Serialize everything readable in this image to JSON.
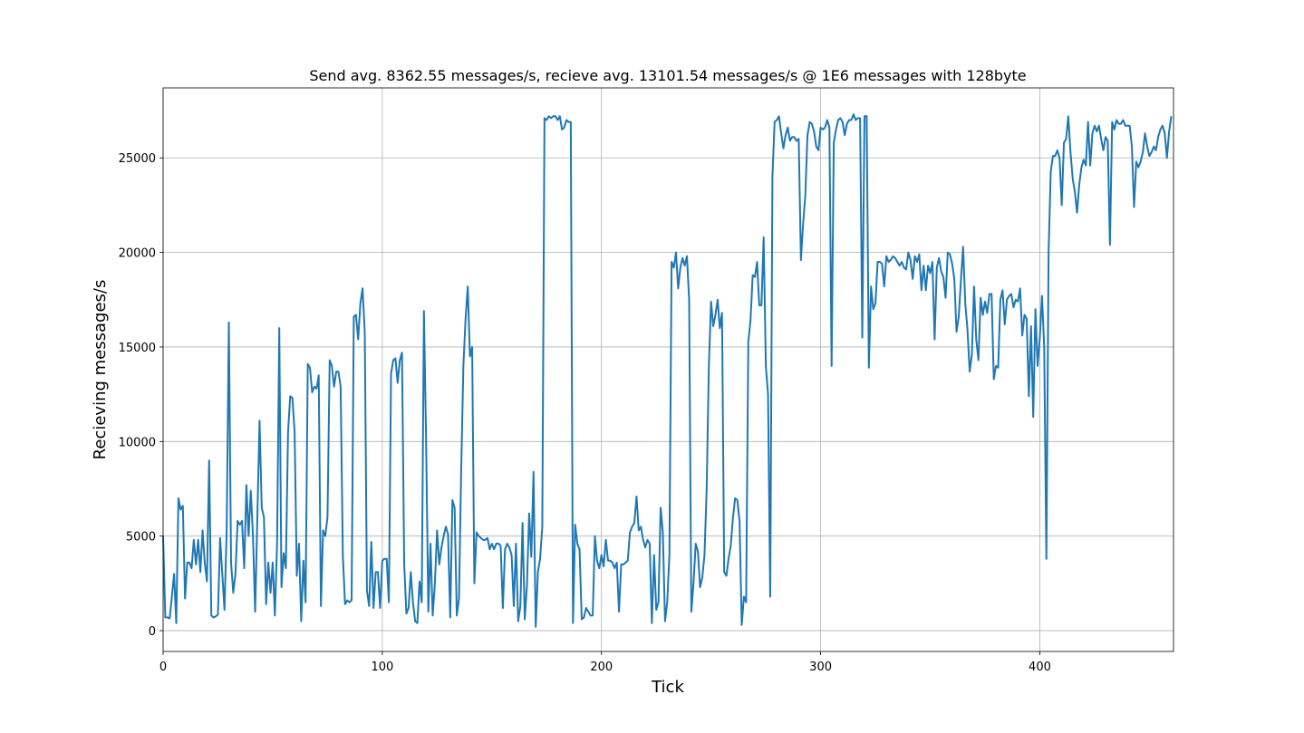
{
  "chart_data": {
    "type": "line",
    "title": "Send avg. 8362.55 messages/s, recieve avg. 13101.54 messages/s @ 1E6 messages with 128byte",
    "x_label": "Tick",
    "y_label": "Recieving messages/s",
    "color": "#1f77b4",
    "grid": true,
    "xlim": [
      0,
      461
    ],
    "ylim": [
      -1100,
      28700
    ],
    "xticks": [
      0,
      100,
      200,
      300,
      400
    ],
    "yticks": [
      0,
      5000,
      10000,
      15000,
      20000,
      25000
    ],
    "x": [
      0,
      1,
      2,
      3,
      4,
      5,
      6,
      7,
      8,
      9,
      10,
      11,
      12,
      13,
      14,
      15,
      16,
      17,
      18,
      19,
      20,
      21,
      22,
      23,
      24,
      25,
      26,
      27,
      28,
      29,
      30,
      31,
      32,
      33,
      34,
      35,
      36,
      37,
      38,
      39,
      40,
      41,
      42,
      43,
      44,
      45,
      46,
      47,
      48,
      49,
      50,
      51,
      52,
      53,
      54,
      55,
      56,
      57,
      58,
      59,
      60,
      61,
      62,
      63,
      64,
      65,
      66,
      67,
      68,
      69,
      70,
      71,
      72,
      73,
      74,
      75,
      76,
      77,
      78,
      79,
      80,
      81,
      82,
      83,
      84,
      85,
      86,
      87,
      88,
      89,
      90,
      91,
      92,
      93,
      94,
      95,
      96,
      97,
      98,
      99,
      100,
      101,
      102,
      103,
      104,
      105,
      106,
      107,
      108,
      109,
      110,
      111,
      112,
      113,
      114,
      115,
      116,
      117,
      118,
      119,
      120,
      121,
      122,
      123,
      124,
      125,
      126,
      127,
      128,
      129,
      130,
      131,
      132,
      133,
      134,
      135,
      136,
      137,
      138,
      139,
      140,
      141,
      142,
      143,
      144,
      145,
      146,
      147,
      148,
      149,
      150,
      151,
      152,
      153,
      154,
      155,
      156,
      157,
      158,
      159,
      160,
      161,
      162,
      163,
      164,
      165,
      166,
      167,
      168,
      169,
      170,
      171,
      172,
      173,
      174,
      175,
      176,
      177,
      178,
      179,
      180,
      181,
      182,
      183,
      184,
      185,
      186,
      187,
      188,
      189,
      190,
      191,
      192,
      193,
      194,
      195,
      196,
      197,
      198,
      199,
      200,
      201,
      202,
      203,
      204,
      205,
      206,
      207,
      208,
      209,
      210,
      211,
      212,
      213,
      214,
      215,
      216,
      217,
      218,
      219,
      220,
      221,
      222,
      223,
      224,
      225,
      226,
      227,
      228,
      229,
      230,
      231,
      232,
      233,
      234,
      235,
      236,
      237,
      238,
      239,
      240,
      241,
      242,
      243,
      244,
      245,
      246,
      247,
      248,
      249,
      250,
      251,
      252,
      253,
      254,
      255,
      256,
      257,
      258,
      259,
      260,
      261,
      262,
      263,
      264,
      265,
      266,
      267,
      268,
      269,
      270,
      271,
      272,
      273,
      274,
      275,
      276,
      277,
      278,
      279,
      280,
      281,
      282,
      283,
      284,
      285,
      286,
      287,
      288,
      289,
      290,
      291,
      292,
      293,
      294,
      295,
      296,
      297,
      298,
      299,
      300,
      301,
      302,
      303,
      304,
      305,
      306,
      307,
      308,
      309,
      310,
      311,
      312,
      313,
      314,
      315,
      316,
      317,
      318,
      319,
      320,
      321,
      322,
      323,
      324,
      325,
      326,
      327,
      328,
      329,
      330,
      331,
      332,
      333,
      334,
      335,
      336,
      337,
      338,
      339,
      340,
      341,
      342,
      343,
      344,
      345,
      346,
      347,
      348,
      349,
      350,
      351,
      352,
      353,
      354,
      355,
      356,
      357,
      358,
      359,
      360,
      361,
      362,
      363,
      364,
      365,
      366,
      367,
      368,
      369,
      370,
      371,
      372,
      373,
      374,
      375,
      376,
      377,
      378,
      379,
      380,
      381,
      382,
      383,
      384,
      385,
      386,
      387,
      388,
      389,
      390,
      391,
      392,
      393,
      394,
      395,
      396,
      397,
      398,
      399,
      400,
      401,
      402,
      403,
      404,
      405,
      406,
      407,
      408,
      409,
      410,
      411,
      412,
      413,
      414,
      415,
      416,
      417,
      418,
      419,
      420,
      421,
      422,
      423,
      424,
      425,
      426,
      427,
      428,
      429,
      430,
      431,
      432,
      433,
      434,
      435,
      436,
      437,
      438,
      439,
      440,
      441,
      442,
      443,
      444,
      445,
      446,
      447,
      448,
      449,
      450,
      451,
      452,
      453,
      454,
      455,
      456,
      457,
      458,
      459,
      460
    ],
    "values": [
      5000,
      700,
      700,
      650,
      1800,
      3000,
      400,
      7000,
      6400,
      6600,
      1700,
      3600,
      3600,
      3300,
      4800,
      3500,
      4800,
      3100,
      5300,
      3600,
      2600,
      9000,
      800,
      700,
      750,
      850,
      4900,
      3000,
      1100,
      5300,
      16300,
      3600,
      2000,
      3000,
      5800,
      5600,
      5800,
      3300,
      7700,
      5000,
      7400,
      5000,
      1000,
      6000,
      11100,
      6500,
      6000,
      1400,
      3600,
      2000,
      3600,
      800,
      4600,
      16000,
      2300,
      4100,
      3300,
      10500,
      12400,
      12300,
      10500,
      2900,
      4600,
      500,
      3700,
      1500,
      14100,
      13900,
      12600,
      12900,
      12800,
      13500,
      1300,
      5300,
      5000,
      6000,
      14300,
      14000,
      12900,
      13700,
      13700,
      12900,
      4000,
      1400,
      1600,
      1500,
      1600,
      16600,
      16700,
      15400,
      17300,
      18100,
      15800,
      2100,
      1300,
      4700,
      1200,
      3100,
      3100,
      1200,
      3700,
      3800,
      3800,
      1500,
      13600,
      14300,
      14400,
      13100,
      14300,
      14700,
      3500,
      900,
      1200,
      3100,
      1500,
      500,
      400,
      2600,
      1500,
      16900,
      10000,
      1000,
      4600,
      800,
      2500,
      5300,
      3500,
      4400,
      5000,
      5500,
      5100,
      700,
      6900,
      6500,
      800,
      1700,
      8500,
      14000,
      16500,
      18200,
      14500,
      15000,
      2500,
      5200,
      5000,
      4900,
      4800,
      4800,
      4900,
      4300,
      4600,
      4300,
      4600,
      4600,
      4500,
      1200,
      4300,
      4600,
      4400,
      4000,
      1300,
      4600,
      500,
      1300,
      5700,
      600,
      2400,
      6200,
      3900,
      8400,
      200,
      3100,
      3800,
      5500,
      27100,
      27000,
      27200,
      27100,
      27200,
      27200,
      27000,
      27200,
      26500,
      26600,
      27000,
      26900,
      26900,
      400,
      5600,
      4600,
      4300,
      600,
      700,
      1200,
      1000,
      800,
      800,
      5000,
      3700,
      3300,
      4000,
      3400,
      4800,
      3700,
      3700,
      3600,
      3300,
      3600,
      1000,
      3500,
      3500,
      3600,
      3700,
      5200,
      5500,
      5700,
      7100,
      5300,
      5500,
      4800,
      4400,
      4800,
      4600,
      400,
      4000,
      1100,
      1500,
      6500,
      5200,
      500,
      1500,
      4000,
      19500,
      19200,
      20000,
      18100,
      19200,
      19700,
      19300,
      19800,
      17500,
      1000,
      2500,
      4600,
      4200,
      2300,
      2800,
      4000,
      7500,
      14000,
      17400,
      16100,
      16700,
      17500,
      16000,
      16800,
      3100,
      2900,
      3800,
      4500,
      6000,
      7000,
      6900,
      5800,
      300,
      1800,
      1500,
      15300,
      16400,
      18800,
      18700,
      19500,
      17200,
      17200,
      20800,
      14000,
      12500,
      1800,
      24000,
      26900,
      27000,
      27200,
      26300,
      25500,
      26200,
      26600,
      25900,
      26100,
      26100,
      25900,
      26000,
      19600,
      21500,
      23000,
      26200,
      26900,
      26800,
      26400,
      25600,
      25400,
      26600,
      26500,
      26600,
      27000,
      26600,
      14000,
      25800,
      26500,
      27000,
      27100,
      26900,
      26200,
      26800,
      27000,
      27000,
      27300,
      27000,
      27100,
      27100,
      15500,
      27200,
      27200,
      13900,
      18200,
      17000,
      17300,
      19500,
      19500,
      19400,
      18200,
      19800,
      19500,
      19600,
      19800,
      19700,
      19500,
      19300,
      19500,
      19200,
      19100,
      20000,
      19600,
      18600,
      19800,
      19500,
      19900,
      18000,
      19300,
      18000,
      19300,
      18900,
      19500,
      15400,
      19200,
      19700,
      19000,
      18700,
      17600,
      20000,
      19900,
      19400,
      18600,
      15800,
      16600,
      18500,
      20300,
      17300,
      15900,
      13700,
      14600,
      18200,
      15400,
      14300,
      17600,
      16700,
      17400,
      16800,
      17800,
      17800,
      13300,
      14000,
      13900,
      17500,
      18000,
      16200,
      17500,
      17700,
      17800,
      17100,
      17500,
      17400,
      18100,
      15600,
      16700,
      16500,
      12400,
      16100,
      11300,
      17000,
      14000,
      15500,
      17700,
      15000,
      3800,
      20000,
      24300,
      25100,
      25100,
      25400,
      25000,
      22500,
      25800,
      26000,
      27200,
      25300,
      23900,
      23200,
      22100,
      23600,
      24500,
      24900,
      24600,
      26900,
      24600,
      26300,
      26700,
      26400,
      26700,
      26000,
      25400,
      26100,
      25900,
      20400,
      26900,
      26500,
      27000,
      26800,
      26800,
      27000,
      26700,
      26700,
      26700,
      25600,
      22400,
      24800,
      24500,
      24800,
      25300,
      26300,
      25600,
      25100,
      25300,
      25600,
      25400,
      26100,
      26500,
      26700,
      26300,
      25000,
      26400,
      27200
    ]
  }
}
